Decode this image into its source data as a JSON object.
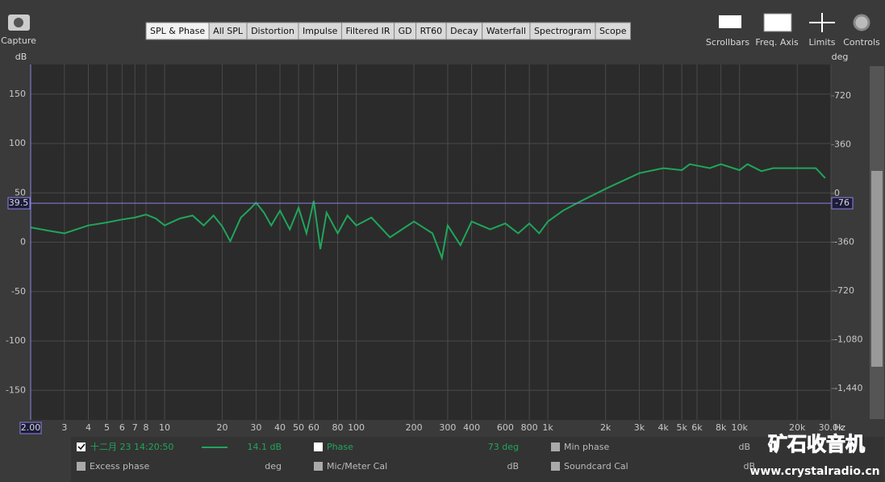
{
  "toolbar": {
    "capture": "Capture",
    "tabs": [
      "SPL & Phase",
      "All SPL",
      "Distortion",
      "Impulse",
      "Filtered IR",
      "GD",
      "RT60",
      "Decay",
      "Waterfall",
      "Spectrogram",
      "Scope"
    ],
    "tools": [
      "Scrollbars",
      "Freq. Axis",
      "Limits",
      "Controls"
    ]
  },
  "chart_data": {
    "type": "line",
    "x_scale": "log",
    "y_label": "dB",
    "y2_label": "deg",
    "x_unit": "Hz",
    "grid": true,
    "xlim": [
      2,
      30000
    ],
    "ylim": [
      -180,
      180
    ],
    "y2lim": [
      -1672,
      952
    ],
    "xticks": [
      3,
      4,
      5,
      6,
      7,
      8,
      10,
      20,
      30,
      40,
      50,
      60,
      80,
      100,
      200,
      300,
      400,
      600,
      800,
      {
        "value": 1000,
        "label": "1k"
      },
      {
        "value": 2000,
        "label": "2k"
      },
      {
        "value": 3000,
        "label": "3k"
      },
      {
        "value": 4000,
        "label": "4k"
      },
      {
        "value": 5000,
        "label": "5k"
      },
      {
        "value": 6000,
        "label": "6k"
      },
      {
        "value": 8000,
        "label": "8k"
      },
      {
        "value": 10000,
        "label": "10k"
      },
      {
        "value": 20000,
        "label": "20k"
      },
      {
        "value": 30000,
        "label": "30.0k"
      }
    ],
    "yticks": [
      150,
      100,
      50,
      0,
      -50,
      -100,
      -150
    ],
    "y2ticks": [
      720,
      360,
      0,
      -360,
      -720,
      {
        "value": -1080,
        "label": "-1,080"
      },
      {
        "value": -1440,
        "label": "-1,440"
      }
    ],
    "cursor": {
      "x": {
        "value": 2,
        "label": "2.00"
      },
      "y": 39.5,
      "y2": -76
    },
    "x": [
      2,
      2.5,
      3,
      4,
      5,
      6,
      7,
      8,
      9,
      10,
      12,
      14,
      16,
      18,
      20,
      22,
      25,
      28,
      30,
      33,
      36,
      40,
      45,
      50,
      55,
      60,
      65,
      70,
      80,
      90,
      100,
      120,
      150,
      200,
      250,
      280,
      300,
      350,
      400,
      500,
      600,
      700,
      800,
      900,
      1000,
      1200,
      1500,
      2000,
      3000,
      4000,
      5000,
      5500,
      7000,
      8000,
      10000,
      11000,
      13000,
      15000,
      20000,
      25000,
      28000
    ],
    "series": [
      {
        "name": "十二月 23 14:20:50",
        "color": "#1fa65a",
        "values": [
          15,
          11.5,
          9,
          17,
          20,
          23,
          25,
          28,
          24,
          17,
          24,
          27,
          17,
          27,
          16,
          1,
          25,
          34,
          40,
          30,
          17,
          32,
          13,
          35,
          9,
          42,
          -7,
          30,
          9,
          27,
          17,
          25,
          5,
          21,
          9,
          -16,
          17,
          -3,
          21,
          13,
          19,
          9,
          19,
          9,
          21,
          32,
          42,
          54,
          70,
          75,
          73,
          79,
          75,
          79,
          73,
          79,
          72,
          75,
          75,
          75,
          65
        ]
      }
    ]
  },
  "legend_panel": {
    "row1": {
      "value": "14.1 dB",
      "phase": "Phase",
      "phase_value": "73 deg",
      "min_phase": "Min phase",
      "min_phase_unit": "dB"
    },
    "row2": {
      "excess_phase": "Excess phase",
      "excess_unit": "deg",
      "mic_cal": "Mic/Meter Cal",
      "mic_unit": "dB",
      "soundcard_cal": "Soundcard Cal",
      "soundcard_unit": "dB"
    }
  },
  "watermark": {
    "title": "矿石收音机",
    "url": "www.crystalradio.cn"
  }
}
